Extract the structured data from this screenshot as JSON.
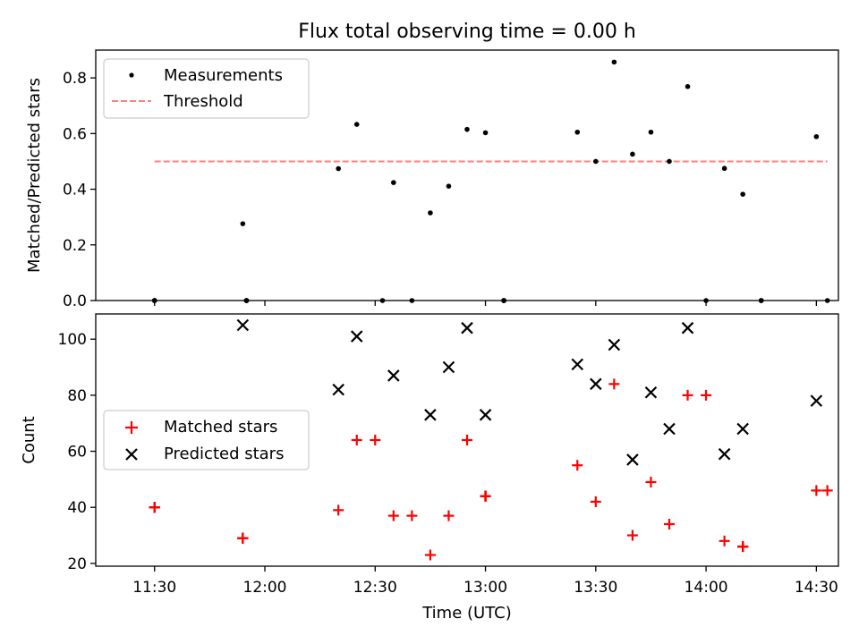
{
  "chart_data": [
    {
      "type": "scatter",
      "title": "Flux total observing time = 0.00 h",
      "xlabel": "",
      "ylabel": "Matched/Predicted stars",
      "ylim": [
        0,
        0.9
      ],
      "yticks": [
        0.0,
        0.2,
        0.4,
        0.6,
        0.8
      ],
      "yticklabels": [
        "0.0",
        "0.2",
        "0.4",
        "0.6",
        "0.8"
      ],
      "grid": false,
      "legend_position": "top-left",
      "series": [
        {
          "name": "Measurements",
          "marker": "point",
          "color": "#000000",
          "points": [
            [
              "11:30",
              0.0
            ],
            [
              "11:30",
              0.0
            ],
            [
              "11:30",
              0.0
            ],
            [
              "11:30",
              0.0
            ],
            [
              "11:30",
              0.0
            ],
            [
              "11:55",
              0.0
            ],
            [
              "11:55",
              0.0
            ],
            [
              "11:55",
              0.0
            ],
            [
              "11:55",
              0.0
            ],
            [
              "11:54",
              0.276
            ],
            [
              "12:20",
              0.474
            ],
            [
              "12:25",
              0.633
            ],
            [
              "12:32",
              0.0
            ],
            [
              "12:35",
              0.424
            ],
            [
              "12:40",
              0.0
            ],
            [
              "12:45",
              0.315
            ],
            [
              "12:50",
              0.411
            ],
            [
              "12:55",
              0.615
            ],
            [
              "13:00",
              0.603
            ],
            [
              "13:05",
              0.0
            ],
            [
              "13:05",
              0.0
            ],
            [
              "13:05",
              0.0
            ],
            [
              "13:05",
              0.0
            ],
            [
              "13:25",
              0.605
            ],
            [
              "13:30",
              0.5
            ],
            [
              "13:35",
              0.857
            ],
            [
              "13:40",
              0.526
            ],
            [
              "13:45",
              0.605
            ],
            [
              "13:50",
              0.5
            ],
            [
              "13:55",
              0.769
            ],
            [
              "14:00",
              0.0
            ],
            [
              "14:05",
              0.475
            ],
            [
              "14:10",
              0.382
            ],
            [
              "14:15",
              0.0
            ],
            [
              "14:15",
              0.0
            ],
            [
              "14:15",
              0.0
            ],
            [
              "14:30",
              0.589
            ],
            [
              "14:33",
              0.0
            ]
          ]
        },
        {
          "name": "Threshold",
          "marker": "dashed-line",
          "color": "#ff7f7f",
          "y": 0.5,
          "x_range": [
            "11:30",
            "14:33"
          ]
        }
      ]
    },
    {
      "type": "scatter",
      "xlabel": "Time (UTC)",
      "ylabel": "Count",
      "ylim": [
        19,
        109
      ],
      "yticks": [
        20,
        40,
        60,
        80,
        100
      ],
      "yticklabels": [
        "20",
        "40",
        "60",
        "80",
        "100"
      ],
      "xticklabels": [
        "11:30",
        "12:00",
        "12:30",
        "13:00",
        "13:30",
        "14:00",
        "14:30"
      ],
      "grid": false,
      "legend_position": "center-left",
      "series": [
        {
          "name": "Matched stars",
          "marker": "plus",
          "color": "#ff0000",
          "points": [
            [
              "11:30",
              40
            ],
            [
              "11:30",
              40
            ],
            [
              "11:30",
              40
            ],
            [
              "11:30",
              40
            ],
            [
              "11:30",
              40
            ],
            [
              "11:54",
              29
            ],
            [
              "11:54",
              29
            ],
            [
              "11:54",
              29
            ],
            [
              "11:54",
              29
            ],
            [
              "11:54",
              29
            ],
            [
              "12:20",
              39
            ],
            [
              "12:25",
              64
            ],
            [
              "12:30",
              64
            ],
            [
              "12:35",
              37
            ],
            [
              "12:40",
              37
            ],
            [
              "12:45",
              23
            ],
            [
              "12:50",
              37
            ],
            [
              "12:55",
              64
            ],
            [
              "13:00",
              44
            ],
            [
              "13:00",
              44
            ],
            [
              "13:00",
              44
            ],
            [
              "13:00",
              44
            ],
            [
              "13:00",
              44
            ],
            [
              "13:25",
              55
            ],
            [
              "13:30",
              42
            ],
            [
              "13:35",
              84
            ],
            [
              "13:40",
              30
            ],
            [
              "13:45",
              49
            ],
            [
              "13:50",
              34
            ],
            [
              "13:55",
              80
            ],
            [
              "14:00",
              80
            ],
            [
              "14:05",
              28
            ],
            [
              "14:10",
              26
            ],
            [
              "14:10",
              26
            ],
            [
              "14:10",
              26
            ],
            [
              "14:10",
              26
            ],
            [
              "14:30",
              46
            ],
            [
              "14:33",
              46
            ]
          ]
        },
        {
          "name": "Predicted stars",
          "marker": "x",
          "color": "#000000",
          "points": [
            [
              "11:54",
              105
            ],
            [
              "12:20",
              82
            ],
            [
              "12:25",
              101
            ],
            [
              "12:35",
              87
            ],
            [
              "12:45",
              73
            ],
            [
              "12:50",
              90
            ],
            [
              "12:55",
              104
            ],
            [
              "13:00",
              73
            ],
            [
              "13:25",
              91
            ],
            [
              "13:30",
              84
            ],
            [
              "13:35",
              98
            ],
            [
              "13:40",
              57
            ],
            [
              "13:45",
              81
            ],
            [
              "13:50",
              68
            ],
            [
              "13:55",
              104
            ],
            [
              "14:05",
              59
            ],
            [
              "14:10",
              68
            ],
            [
              "14:30",
              78
            ]
          ]
        }
      ]
    }
  ]
}
